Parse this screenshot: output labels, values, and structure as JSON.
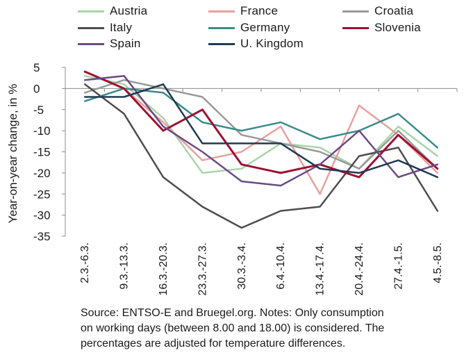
{
  "chart_data": {
    "type": "line",
    "title": "",
    "xlabel": "",
    "ylabel": "Year-on-year change, in %",
    "ylim": [
      -35,
      5
    ],
    "yticks": [
      5,
      0,
      -5,
      -10,
      -15,
      -20,
      -25,
      -30,
      -35
    ],
    "categories": [
      "2.3.-6.3.",
      "9.3.-13.3.",
      "16.3.-20.3.",
      "23.3.-27.3.",
      "30.3.-3.4.",
      "6.4.-10.4.",
      "13.4.-17.4.",
      "20.4.-24.4.",
      "27.4.-1.5.",
      "4.5.-8.5."
    ],
    "grid": false,
    "legend_position": "top",
    "series": [
      {
        "name": "Austria",
        "color": "#a8d5a8",
        "values": [
          3,
          1,
          -7,
          -20,
          -19,
          -13,
          -14,
          -19,
          -9,
          -16
        ]
      },
      {
        "name": "France",
        "color": "#e8a09c",
        "values": [
          4,
          0,
          -8,
          -17,
          -15,
          -9,
          -25,
          -4,
          -11,
          -20
        ]
      },
      {
        "name": "Croatia",
        "color": "#999999",
        "values": [
          -1,
          2,
          0,
          -2,
          -11,
          -13,
          -15,
          -19,
          -10,
          -19
        ]
      },
      {
        "name": "Italy",
        "color": "#4d4d4d",
        "values": [
          1,
          -6,
          -21,
          -28,
          -33,
          -29,
          -28,
          -16,
          -14,
          -29
        ]
      },
      {
        "name": "Germany",
        "color": "#3c8a8a",
        "values": [
          -3,
          0,
          -1,
          -8,
          -10,
          -8,
          -12,
          -10,
          -6,
          -14
        ]
      },
      {
        "name": "Slovenia",
        "color": "#9e1030",
        "values": [
          4,
          0,
          -10,
          -5,
          -18,
          -20,
          -18,
          -21,
          -11,
          -19
        ]
      },
      {
        "name": "Spain",
        "color": "#6b4a85",
        "values": [
          2,
          3,
          -9,
          -15,
          -22,
          -23,
          -18,
          -10,
          -21,
          -18
        ]
      },
      {
        "name": "U. Kingdom",
        "color": "#1f3a52",
        "values": [
          -2,
          -2,
          1,
          -13,
          -13,
          -13,
          -19,
          -20,
          -17,
          -21
        ]
      }
    ]
  },
  "source_note": [
    "Source: ENTSO-E and Bruegel.org. Notes: Only consumption",
    "on working days (between 8.00 and 18.00) is considered. The",
    "percentages are adjusted for temperature differences."
  ]
}
